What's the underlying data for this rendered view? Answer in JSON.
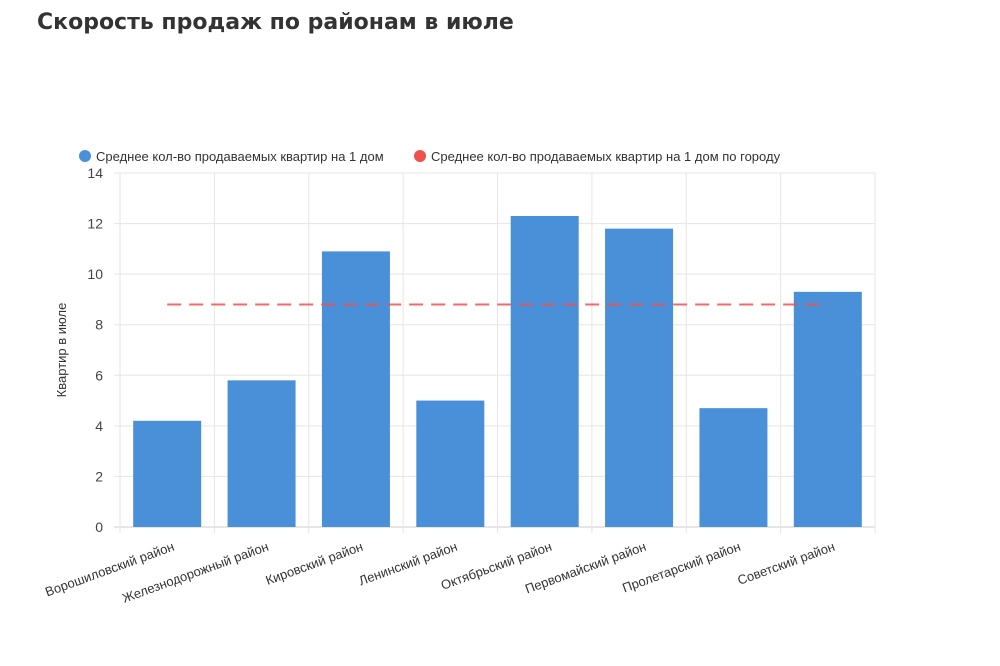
{
  "chart_data": {
    "type": "bar",
    "title": "Скорость продаж по районам в июле",
    "ylabel": "Квартир в июле",
    "xlabel": "",
    "ylim": [
      0,
      14
    ],
    "yticks": [
      0,
      2,
      4,
      6,
      8,
      10,
      12,
      14
    ],
    "grid": true,
    "legend_position": "top",
    "categories": [
      "Ворошиловский район",
      "Железнодорожный район",
      "Кировский район",
      "Ленинский район",
      "Октябрьский район",
      "Первомайский район",
      "Пролетарский район",
      "Советский район"
    ],
    "series": [
      {
        "name": "Среднее кол-во продаваемых квартир на 1 дом",
        "type": "bar",
        "color": "#4a90d9",
        "values": [
          4.2,
          5.8,
          10.9,
          5.0,
          12.3,
          11.8,
          4.7,
          9.3
        ]
      },
      {
        "name": "Среднее кол-во продаваемых квартир на 1 дом по городу",
        "type": "line",
        "style": "dashed",
        "color": "#f05050",
        "values": [
          8.8,
          8.8,
          8.8,
          8.8,
          8.8,
          8.8,
          8.8,
          8.8
        ]
      }
    ]
  }
}
